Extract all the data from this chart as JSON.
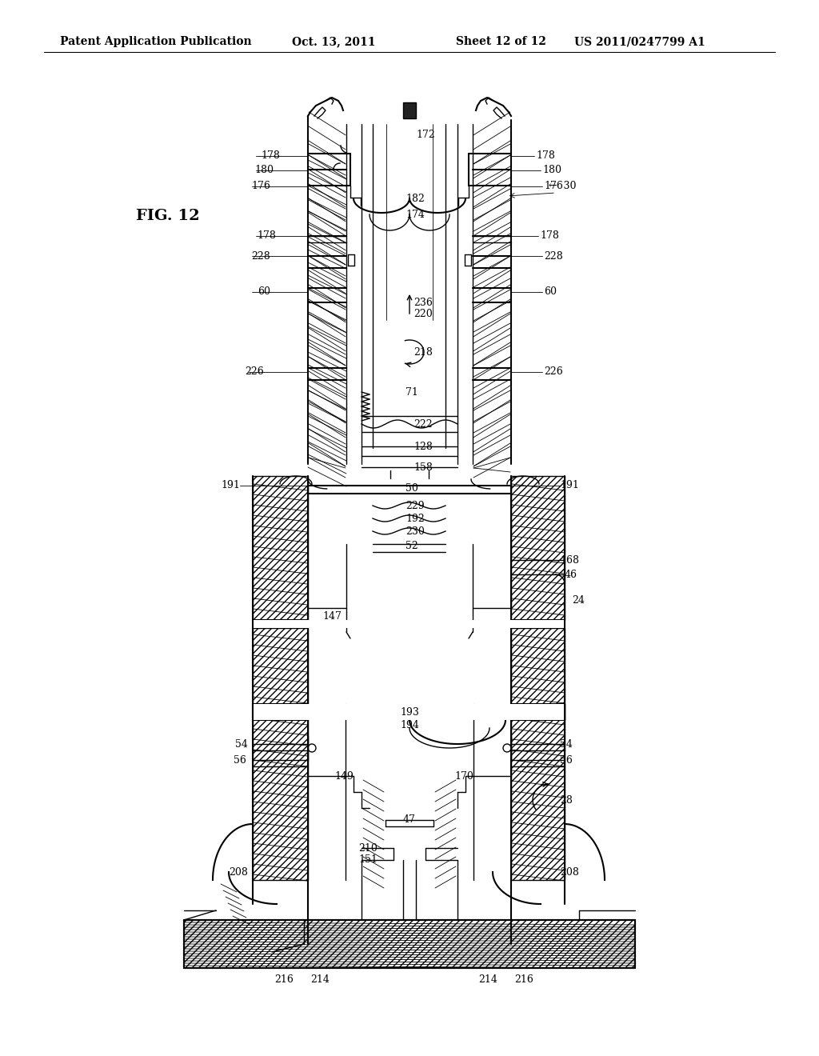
{
  "title_line1": "Patent Application Publication",
  "title_line2": "Oct. 13, 2011",
  "title_line3": "Sheet 12 of 12",
  "title_line4": "US 2011/0247799 A1",
  "fig_label": "FIG. 12",
  "background_color": "#ffffff",
  "line_color": "#000000",
  "header_fontsize": 10,
  "fig_fontsize": 14,
  "label_fontsize": 9
}
